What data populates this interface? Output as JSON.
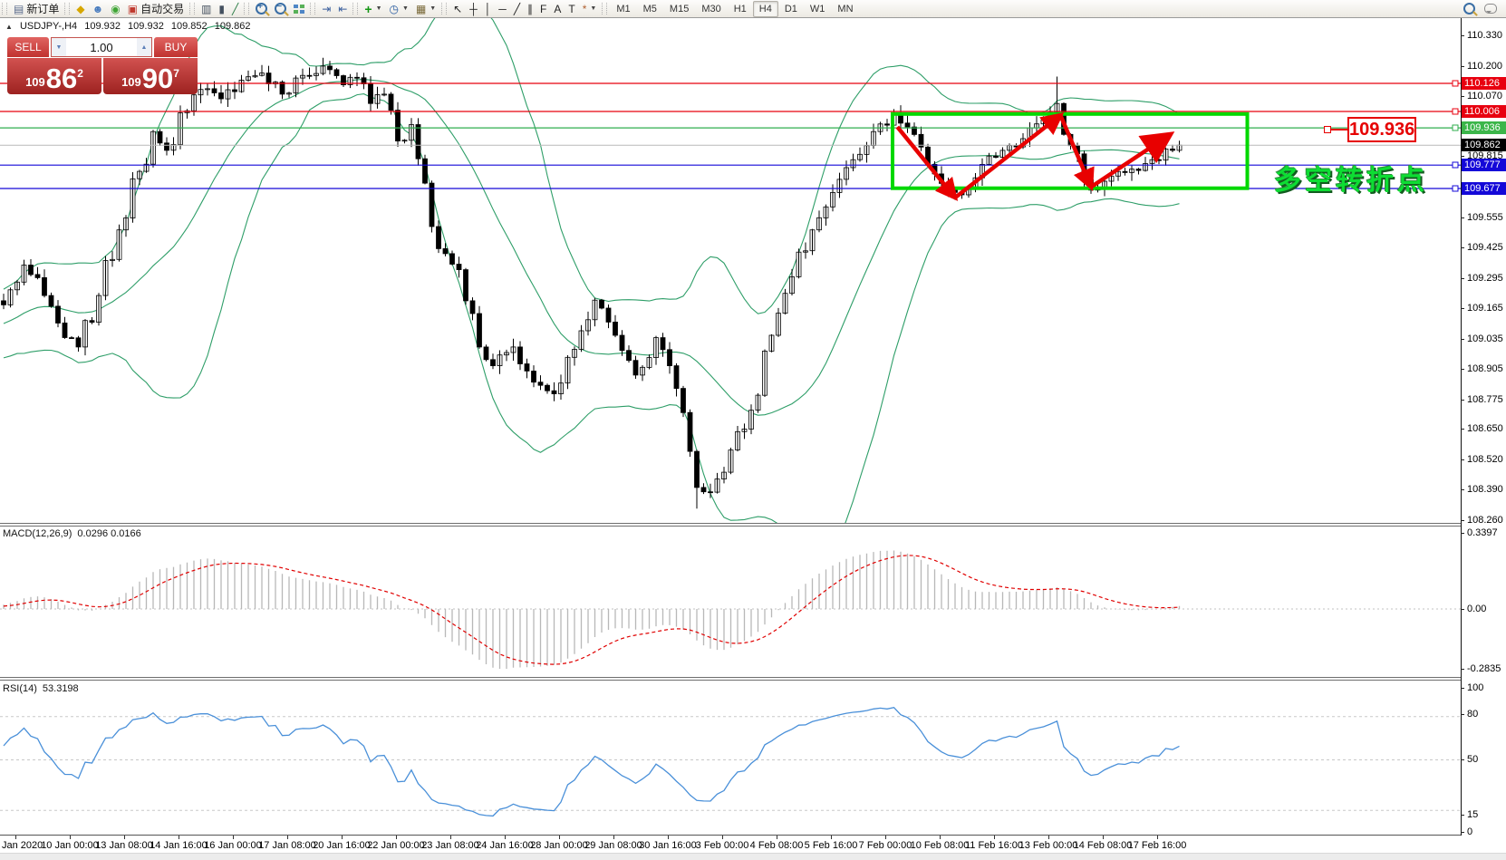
{
  "toolbar": {
    "groups": [
      {
        "items": [
          {
            "name": "new-order",
            "label": "新订单",
            "glyph": "▤",
            "color": "#5a6b8c"
          }
        ]
      },
      {
        "items": [
          {
            "name": "metaeditor",
            "glyph": "◆",
            "color": "#d7a700"
          },
          {
            "name": "mql5-community",
            "glyph": "☻",
            "color": "#4a7dbf"
          },
          {
            "name": "signals",
            "glyph": "◉",
            "color": "#3fa535"
          },
          {
            "name": "autotrading",
            "label": "自动交易",
            "glyph": "▣",
            "color": "#c03a2f"
          }
        ]
      },
      {
        "items": [
          {
            "name": "bar-chart",
            "glyph": "▥",
            "color": "#44505f"
          },
          {
            "name": "candlestick-chart",
            "glyph": "▮",
            "color": "#44505f"
          },
          {
            "name": "line-chart",
            "glyph": "╱",
            "color": "#2a7d46"
          }
        ]
      },
      {
        "items": [
          {
            "name": "zoom-in",
            "custom": "magp"
          },
          {
            "name": "zoom-out",
            "custom": "magm"
          },
          {
            "name": "tile-windows",
            "custom": "tiles"
          }
        ]
      },
      {
        "items": [
          {
            "name": "auto-scroll",
            "glyph": "⇥",
            "color": "#3a5f9e"
          },
          {
            "name": "chart-shift",
            "glyph": "⇤",
            "color": "#3a5f9e"
          }
        ]
      },
      {
        "items": [
          {
            "name": "add-indicator",
            "glyph": "+",
            "color": "#149614",
            "caret": true
          },
          {
            "name": "periods",
            "glyph": "◷",
            "color": "#2458a0",
            "caret": true
          },
          {
            "name": "templates",
            "glyph": "▦",
            "color": "#7a6a3a",
            "caret": true
          }
        ]
      },
      {
        "items": [
          {
            "name": "cursor",
            "glyph": "↖",
            "color": "#222222"
          },
          {
            "name": "crosshair",
            "glyph": "┼",
            "color": "#222222"
          },
          {
            "name": "vertical-line",
            "glyph": "│",
            "color": "#222222"
          },
          {
            "name": "horizontal-line",
            "glyph": "─",
            "color": "#222222"
          },
          {
            "name": "trendline",
            "glyph": "╱",
            "color": "#222222"
          },
          {
            "name": "equidistant-channel",
            "glyph": "∥",
            "color": "#222222"
          },
          {
            "name": "fibonacci",
            "glyph": "F",
            "color": "#222222"
          },
          {
            "name": "text",
            "glyph": "A",
            "color": "#222222"
          },
          {
            "name": "text-label",
            "glyph": "T",
            "color": "#222222"
          },
          {
            "name": "arrows-tool",
            "glyph": "*",
            "color": "#b06030",
            "caret": true
          }
        ]
      }
    ],
    "timeframes": [
      "M1",
      "M5",
      "M15",
      "M30",
      "H1",
      "H4",
      "D1",
      "W1",
      "MN"
    ],
    "active_timeframe": "H4"
  },
  "symbol_info": {
    "marker": "▲",
    "symbol": "USDJPY-,H4",
    "open": "109.932",
    "high": "109.932",
    "low": "109.852",
    "close": "109.862"
  },
  "trade_panel": {
    "sell_label": "SELL",
    "buy_label": "BUY",
    "volume": "1.00",
    "sell_price_small": "109",
    "sell_price_big": "86",
    "sell_price_sup": "2",
    "buy_price_small": "109",
    "buy_price_big": "90",
    "buy_price_sup": "7"
  },
  "chart_data": {
    "type": "candlestick",
    "symbol": "USDJPY-",
    "timeframe": "H4",
    "price_axis": {
      "ticks": [
        "110.330",
        "110.200",
        "110.070",
        "109.815",
        "109.555",
        "109.425",
        "109.295",
        "109.165",
        "109.035",
        "108.905",
        "108.775",
        "108.650",
        "108.520",
        "108.390",
        "108.260"
      ]
    },
    "axis_chips": [
      {
        "text": "110.126",
        "price": 110.126,
        "bg": "#e8000f"
      },
      {
        "text": "110.006",
        "price": 110.006,
        "bg": "#e8000f"
      },
      {
        "text": "109.936",
        "price": 109.936,
        "bg": "#3cb64a"
      },
      {
        "text": "109.862",
        "price": 109.862,
        "bg": "#000000"
      },
      {
        "text": "109.777",
        "price": 109.777,
        "bg": "#1408d8"
      },
      {
        "text": "109.677",
        "price": 109.677,
        "bg": "#1408d8"
      }
    ],
    "hlines": [
      {
        "price": 110.126,
        "color": "#e8000f"
      },
      {
        "price": 110.006,
        "color": "#e8000f"
      },
      {
        "price": 109.936,
        "color": "#2fae4e"
      },
      {
        "price": 109.777,
        "color": "#1408d8"
      },
      {
        "price": 109.677,
        "color": "#1408d8"
      }
    ],
    "bid_line": {
      "price": 109.862,
      "color": "#b9b9b9"
    },
    "time_labels": [
      "Jan 2020",
      "10 Jan 00:00",
      "13 Jan 08:00",
      "14 Jan 16:00",
      "16 Jan 00:00",
      "17 Jan 08:00",
      "20 Jan 16:00",
      "22 Jan 00:00",
      "23 Jan 08:00",
      "24 Jan 16:00",
      "28 Jan 00:00",
      "29 Jan 08:00",
      "30 Jan 16:00",
      "3 Feb 00:00",
      "4 Feb 08:00",
      "5 Feb 16:00",
      "7 Feb 00:00",
      "10 Feb 08:00",
      "11 Feb 16:00",
      "13 Feb 00:00",
      "14 Feb 08:00",
      "17 Feb 16:00"
    ],
    "candles": {
      "count": 174,
      "close_waypoints": [
        [
          0,
          109.18
        ],
        [
          3,
          109.35
        ],
        [
          6,
          109.22
        ],
        [
          9,
          109.04
        ],
        [
          11,
          109.0
        ],
        [
          14,
          109.22
        ],
        [
          17,
          109.5
        ],
        [
          20,
          109.75
        ],
        [
          22,
          109.92
        ],
        [
          24,
          109.84
        ],
        [
          26,
          110.0
        ],
        [
          29,
          110.1
        ],
        [
          32,
          110.06
        ],
        [
          35,
          110.14
        ],
        [
          38,
          110.17
        ],
        [
          41,
          110.08
        ],
        [
          44,
          110.16
        ],
        [
          47,
          110.2
        ],
        [
          50,
          110.12
        ],
        [
          52,
          110.15
        ],
        [
          54,
          110.04
        ],
        [
          56,
          110.08
        ],
        [
          58,
          109.88
        ],
        [
          60,
          109.95
        ],
        [
          62,
          109.7
        ],
        [
          64,
          109.42
        ],
        [
          67,
          109.33
        ],
        [
          70,
          109.0
        ],
        [
          72,
          108.92
        ],
        [
          75,
          109.0
        ],
        [
          78,
          108.85
        ],
        [
          81,
          108.8
        ],
        [
          84,
          108.99
        ],
        [
          87,
          109.2
        ],
        [
          90,
          109.05
        ],
        [
          93,
          108.88
        ],
        [
          96,
          109.04
        ],
        [
          98,
          108.92
        ],
        [
          100,
          108.72
        ],
        [
          102,
          108.4
        ],
        [
          104,
          108.38
        ],
        [
          107,
          108.56
        ],
        [
          110,
          108.73
        ],
        [
          113,
          109.05
        ],
        [
          116,
          109.3
        ],
        [
          119,
          109.5
        ],
        [
          122,
          109.66
        ],
        [
          125,
          109.8
        ],
        [
          128,
          109.92
        ],
        [
          131,
          110.0
        ],
        [
          133,
          109.94
        ],
        [
          136,
          109.78
        ],
        [
          139,
          109.67
        ],
        [
          141,
          109.65
        ],
        [
          144,
          109.78
        ],
        [
          147,
          109.84
        ],
        [
          150,
          109.89
        ],
        [
          153,
          109.97
        ],
        [
          155,
          110.04
        ],
        [
          157,
          109.86
        ],
        [
          160,
          109.67
        ],
        [
          163,
          109.73
        ],
        [
          166,
          109.76
        ],
        [
          169,
          109.8
        ],
        [
          172,
          109.84
        ],
        [
          173,
          109.862
        ]
      ],
      "spikes": [
        {
          "i": 47,
          "high": 110.235
        },
        {
          "i": 102,
          "low": 108.31
        },
        {
          "i": 155,
          "high": 110.155
        }
      ]
    },
    "indicators": {
      "bollinger": {
        "period": 20,
        "deviation": 2,
        "color": "#2e9e68"
      },
      "macd": {
        "label": "MACD(12,26,9)",
        "values": "0.0296 0.0166",
        "axis": [
          "0.3397",
          "0.00",
          "-0.2835"
        ],
        "histogram_color": "#b8b8b8",
        "signal_color": "#e00000"
      },
      "rsi": {
        "label": "RSI(14)",
        "value": "53.3198",
        "axis_top": "100",
        "axis_bottom": "0",
        "levels": [
          80,
          50,
          15
        ],
        "color": "#4a90d9"
      }
    },
    "annotations": {
      "rect": {
        "x1_bar": 130.8,
        "x2_bar": 183,
        "top_price": 109.995,
        "bottom_price": 109.678,
        "color": "#00d800"
      },
      "zigzag": {
        "color": "#e80000",
        "points": [
          [
            131.5,
            109.94
          ],
          [
            140,
            109.638
          ],
          [
            155.5,
            109.99
          ],
          [
            160,
            109.683
          ],
          [
            171.5,
            109.905
          ]
        ]
      },
      "turning_point_text": {
        "text": "多空转折点",
        "color": "#0ddd33"
      },
      "price_callout": {
        "text": "109.936"
      }
    }
  }
}
